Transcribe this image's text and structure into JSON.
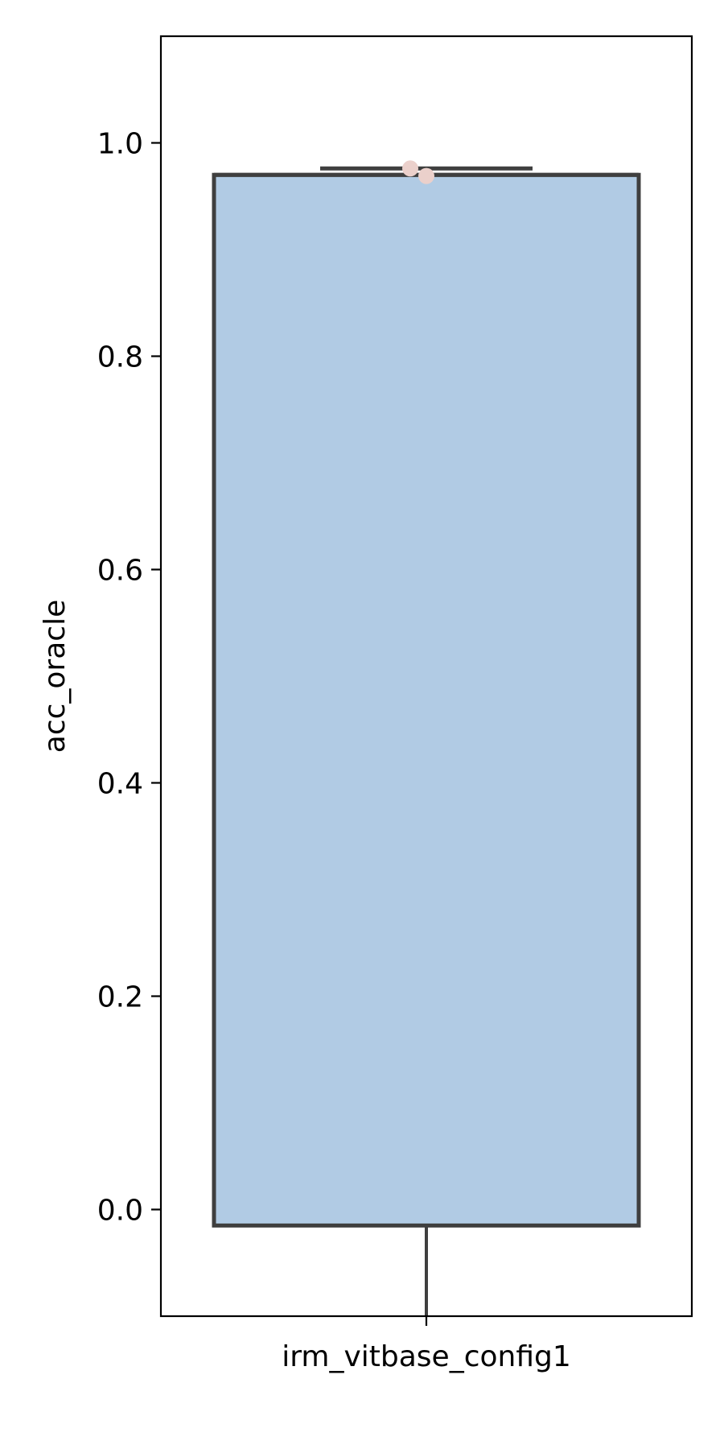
{
  "chart_data": {
    "type": "box",
    "title": "",
    "xlabel": "",
    "ylabel": "acc_oracle",
    "categories": [
      "irm_vitbase_config1"
    ],
    "ylim": [
      -0.1,
      1.1
    ],
    "yticks": [
      0.0,
      0.2,
      0.4,
      0.6,
      0.8,
      1.0
    ],
    "ytick_labels": [
      "0.0",
      "0.2",
      "0.4",
      "0.6",
      "0.8",
      "1.0"
    ],
    "grid": false,
    "legend": "none",
    "boxes": [
      {
        "category": "irm_vitbase_config1",
        "q1": -0.015,
        "median": 0.97,
        "q3": 0.97,
        "whisker_low": -0.1,
        "whisker_high": 0.976
      }
    ],
    "points": [
      {
        "category": "irm_vitbase_config1",
        "y": 0.976
      },
      {
        "category": "irm_vitbase_config1",
        "y": 0.969
      }
    ],
    "colors": {
      "box_fill": "#b1cbe4",
      "box_edge": "#3f3f3f",
      "point": "#ebd0cb",
      "axis": "#000000"
    }
  }
}
